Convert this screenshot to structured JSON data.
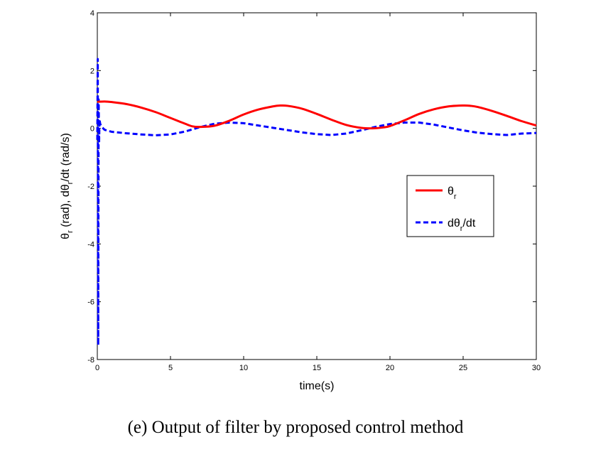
{
  "caption": "(e) Output of filter by proposed control method",
  "chart_data": {
    "type": "line",
    "title": "",
    "xlabel": "time(s)",
    "ylabel": {
      "prefix": "θ",
      "sub1": "r",
      "middle": " (rad), dθ",
      "sub2": "r",
      "suffix": "/dt (rad/s)"
    },
    "xlim": [
      0,
      30
    ],
    "ylim": [
      -8,
      4
    ],
    "xticks": [
      0,
      5,
      10,
      15,
      20,
      25,
      30
    ],
    "xtick_labels": [
      "0",
      "5",
      "10",
      "15",
      "20",
      "25",
      "30"
    ],
    "yticks": [
      -8,
      -6,
      -4,
      -2,
      0,
      2,
      4
    ],
    "ytick_labels": [
      "-8",
      "-6",
      "-4",
      "-2",
      "0",
      "2",
      "4"
    ],
    "grid": false,
    "legend_position": "right",
    "series": [
      {
        "name": "θr",
        "legend_main": "θ",
        "legend_sub": "r",
        "legend_suffix": "",
        "color": "#ff0000",
        "style": "solid",
        "x": [
          0,
          0.5,
          1,
          2,
          3,
          4,
          5,
          6,
          6.5,
          7,
          8,
          9,
          10,
          11,
          12,
          12.5,
          13,
          14,
          15,
          16,
          17,
          18,
          18.8,
          19.5,
          20,
          21,
          22,
          23,
          24,
          25,
          25.5,
          26,
          27,
          28,
          29,
          30
        ],
        "y": [
          0.92,
          0.93,
          0.91,
          0.84,
          0.72,
          0.56,
          0.36,
          0.16,
          0.07,
          0.05,
          0.09,
          0.26,
          0.48,
          0.65,
          0.76,
          0.79,
          0.78,
          0.68,
          0.5,
          0.3,
          0.12,
          0.02,
          0.0,
          0.03,
          0.08,
          0.28,
          0.5,
          0.66,
          0.76,
          0.79,
          0.78,
          0.74,
          0.6,
          0.43,
          0.25,
          0.1
        ]
      },
      {
        "name": "dθr/dt",
        "legend_main": "dθ",
        "legend_sub": "r",
        "legend_suffix": "/dt",
        "color": "#0000ff",
        "style": "dashed",
        "x": [
          0,
          0.03,
          0.06,
          0.09,
          0.12,
          0.15,
          0.2,
          0.3,
          0.5,
          1,
          2,
          3,
          4,
          5,
          6,
          7,
          8,
          9,
          10,
          11,
          12,
          13,
          14,
          15,
          16,
          17,
          18,
          19,
          20,
          21,
          22,
          23,
          24,
          25,
          26,
          27,
          28,
          29,
          30
        ],
        "y": [
          -0.4,
          2.4,
          -7.5,
          1.0,
          -0.5,
          0.3,
          0.15,
          0.05,
          -0.05,
          -0.12,
          -0.17,
          -0.21,
          -0.24,
          -0.21,
          -0.11,
          0.04,
          0.16,
          0.2,
          0.18,
          0.1,
          0.02,
          -0.06,
          -0.14,
          -0.2,
          -0.23,
          -0.18,
          -0.07,
          0.05,
          0.15,
          0.2,
          0.2,
          0.13,
          0.03,
          -0.07,
          -0.15,
          -0.2,
          -0.23,
          -0.18,
          -0.16
        ]
      }
    ]
  }
}
